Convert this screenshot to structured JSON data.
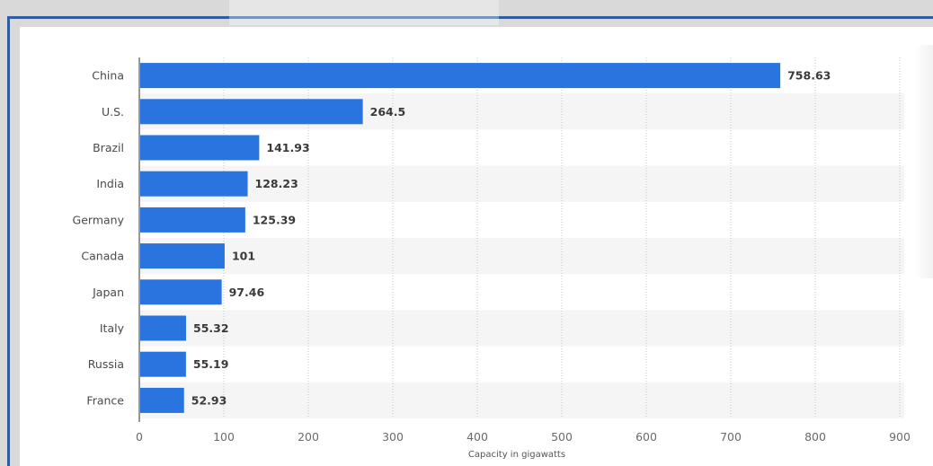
{
  "chart_data": {
    "type": "bar",
    "orientation": "horizontal",
    "categories": [
      "China",
      "U.S.",
      "Brazil",
      "India",
      "Germany",
      "Canada",
      "Japan",
      "Italy",
      "Russia",
      "France"
    ],
    "values": [
      758.63,
      264.5,
      141.93,
      128.23,
      125.39,
      101,
      97.46,
      55.32,
      55.19,
      52.93
    ],
    "value_labels": [
      "758.63",
      "264.5",
      "141.93",
      "128.23",
      "125.39",
      "101",
      "97.46",
      "55.32",
      "55.19",
      "52.93"
    ],
    "xlabel": "Capacity in gigawatts",
    "ylabel": "",
    "xlim": [
      0,
      900
    ],
    "xticks": [
      0,
      100,
      200,
      300,
      400,
      500,
      600,
      700,
      800,
      900
    ],
    "grid": true,
    "bar_color": "#2a74e0",
    "alt_row_color": "#f5f5f5"
  }
}
